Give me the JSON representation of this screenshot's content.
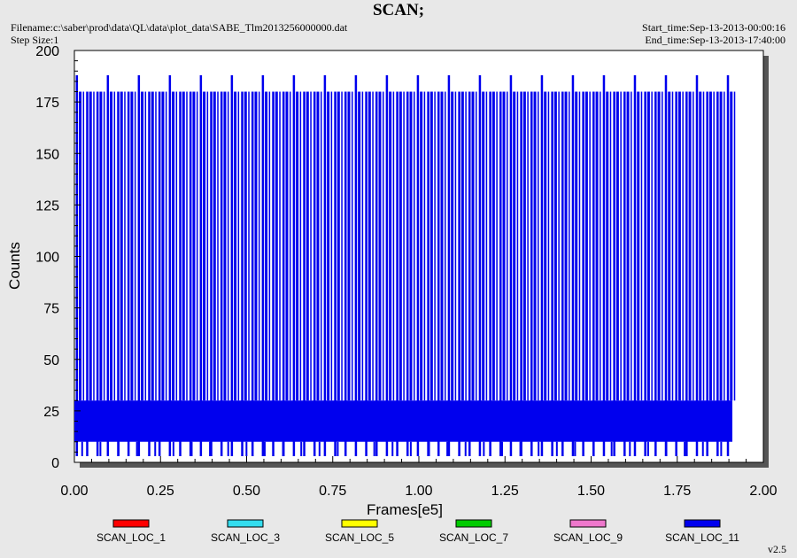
{
  "header": {
    "title": "SCAN;",
    "filename": "Filename:c:\\saber\\prod\\data\\QL\\data\\plot_data\\SABE_Tlm2013256000000.dat",
    "step_size": "Step Size:1",
    "start_time": "Start_time:Sep-13-2013-00:00:16",
    "end_time": "End_time:Sep-13-2013-17:40:00"
  },
  "version": "v2.5",
  "chart_data": {
    "type": "line",
    "title": "SCAN;",
    "xlabel": "Frames[e5]",
    "ylabel": "Counts",
    "xlim": [
      0,
      2.0
    ],
    "ylim": [
      0,
      200
    ],
    "x_ticks": [
      "0.00",
      "0.25",
      "0.50",
      "0.75",
      "1.00",
      "1.25",
      "1.50",
      "1.75",
      "2.00"
    ],
    "y_ticks": [
      "0",
      "25",
      "50",
      "75",
      "100",
      "125",
      "150",
      "175",
      "200"
    ],
    "x_range_of_data": [
      0.0,
      1.91
    ],
    "grid": false,
    "legend_position": "bottom",
    "series": [
      {
        "name": "SCAN_LOC_1",
        "color": "#ff0000"
      },
      {
        "name": "SCAN_LOC_3",
        "color": "#33ddee"
      },
      {
        "name": "SCAN_LOC_5",
        "color": "#ffff00"
      },
      {
        "name": "SCAN_LOC_7",
        "color": "#00cc00"
      },
      {
        "name": "SCAN_LOC_9",
        "color": "#ee77cc"
      },
      {
        "name": "SCAN_LOC_11",
        "color": "#0000ee",
        "band_low": 10,
        "band_high": 30,
        "peak_values": [
          180,
          188
        ],
        "spike_period": 0.03
      }
    ]
  }
}
